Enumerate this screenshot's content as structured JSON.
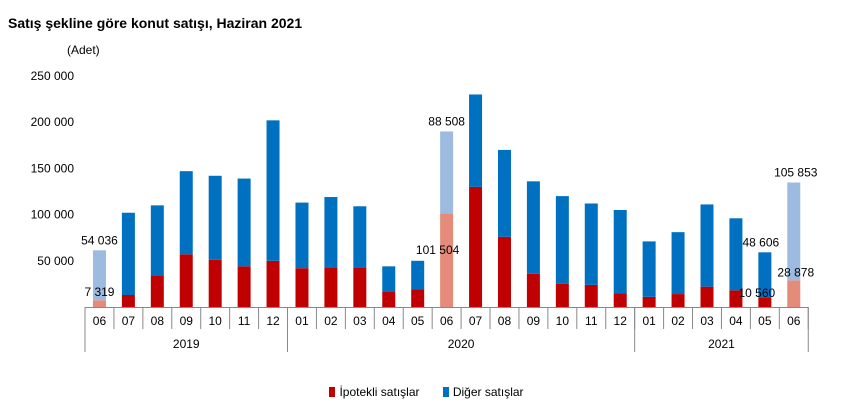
{
  "chart_data": {
    "type": "bar",
    "stacked": true,
    "title": "Satış şekline göre konut satışı, Haziran 2021",
    "unit_label": "(Adet)",
    "ylim": [
      0,
      250000
    ],
    "y_ticks": [
      50000,
      100000,
      150000,
      200000,
      250000
    ],
    "y_tick_labels": [
      "50 000",
      "100 000",
      "150 000",
      "200 000",
      "250 000"
    ],
    "categories": [
      "06",
      "07",
      "08",
      "09",
      "10",
      "11",
      "12",
      "01",
      "02",
      "03",
      "04",
      "05",
      "06",
      "07",
      "08",
      "09",
      "10",
      "11",
      "12",
      "01",
      "02",
      "03",
      "04",
      "05",
      "06"
    ],
    "year_groups": [
      {
        "label": "2019",
        "count": 7
      },
      {
        "label": "2020",
        "count": 12
      },
      {
        "label": "2021",
        "count": 6
      }
    ],
    "series": [
      {
        "name": "İpotekli satışlar",
        "color": "#C00000",
        "values": [
          7319,
          13000,
          34000,
          57000,
          51000,
          44000,
          50000,
          42000,
          43000,
          43000,
          17000,
          19000,
          101504,
          130000,
          76000,
          36000,
          25000,
          24000,
          15000,
          11000,
          14000,
          22000,
          18000,
          10560,
          28878
        ]
      },
      {
        "name": "Diğer satışlar",
        "color": "#0070C0",
        "values": [
          54036,
          89000,
          76000,
          90000,
          91000,
          95000,
          152000,
          71000,
          76000,
          66000,
          27000,
          31000,
          88508,
          100000,
          94000,
          100000,
          95000,
          88000,
          90000,
          60000,
          67000,
          89000,
          78000,
          48606,
          105853
        ]
      }
    ],
    "highlight_indices": [
      0,
      12,
      24
    ],
    "highlight_colors": {
      "İpotekli satışlar": "#E58B7A",
      "Diğer satışlar": "#9DBBE1"
    },
    "data_labels": [
      {
        "index": 0,
        "series": 1,
        "text": "54 036"
      },
      {
        "index": 0,
        "series": 0,
        "text": "7 319"
      },
      {
        "index": 12,
        "series": 1,
        "text": "88 508"
      },
      {
        "index": 12,
        "series": 0,
        "text": "101 504"
      },
      {
        "index": 23,
        "series": 1,
        "text": "48 606"
      },
      {
        "index": 23,
        "series": 0,
        "text": "10 560"
      },
      {
        "index": 24,
        "series": 1,
        "text": "105 853"
      },
      {
        "index": 24,
        "series": 0,
        "text": "28 878"
      }
    ],
    "legend": {
      "position": "bottom"
    },
    "grid": false
  }
}
